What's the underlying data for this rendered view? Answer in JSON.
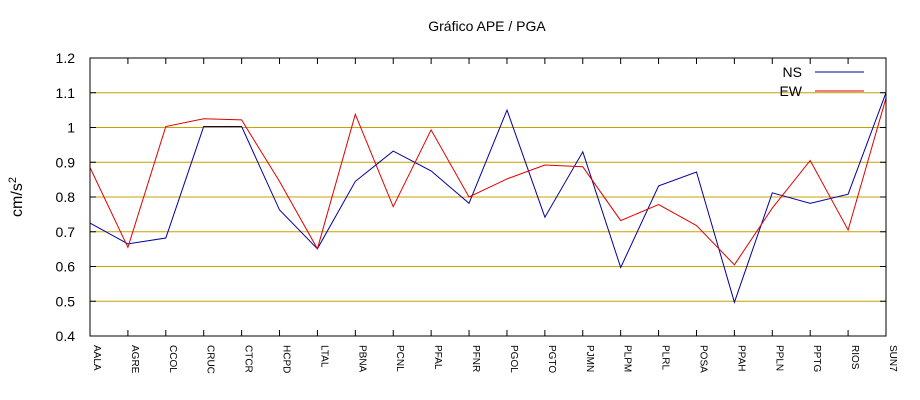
{
  "chart_data": {
    "type": "line",
    "title": "Gráfico  APE / PGA",
    "ylabel": "cm/s²",
    "ylabel_base": "cm/s",
    "ylabel_sup": "2",
    "xlabel": "",
    "ylim": [
      0.4,
      1.2
    ],
    "yticks": [
      "0.4",
      "0.5",
      "0.6",
      "0.7",
      "0.8",
      "0.9",
      "1",
      "1.1",
      "1.2"
    ],
    "grid": "horizontal",
    "legend": "top-right",
    "categories": [
      "AALA",
      "AGRE",
      "CCOL",
      "CRUC",
      "CTCR",
      "HCPD",
      "LTAL",
      "PBNA",
      "PCNL",
      "PFAL",
      "PFNR",
      "PGOL",
      "PGTO",
      "PJMN",
      "PLPM",
      "PLRL",
      "POSA",
      "PPAH",
      "PPLN",
      "PPTG",
      "RIOS",
      "SUN7"
    ],
    "series": [
      {
        "name": "NS",
        "color": "#0000a0",
        "values": [
          0.725,
          0.665,
          0.682,
          1.003,
          1.003,
          0.763,
          0.651,
          0.845,
          0.932,
          0.875,
          0.782,
          1.05,
          0.742,
          0.93,
          0.597,
          0.832,
          0.872,
          0.497,
          0.812,
          0.782,
          0.808,
          1.1
        ]
      },
      {
        "name": "EW",
        "color": "#e00000",
        "values": [
          0.885,
          0.655,
          1.003,
          1.025,
          1.022,
          0.845,
          0.651,
          1.038,
          0.772,
          0.993,
          0.8,
          0.852,
          0.892,
          0.887,
          0.732,
          0.778,
          0.718,
          0.605,
          0.768,
          0.905,
          0.705,
          1.085
        ]
      }
    ],
    "colors": {
      "grid": "#c8a000",
      "axis": "#000000"
    }
  }
}
